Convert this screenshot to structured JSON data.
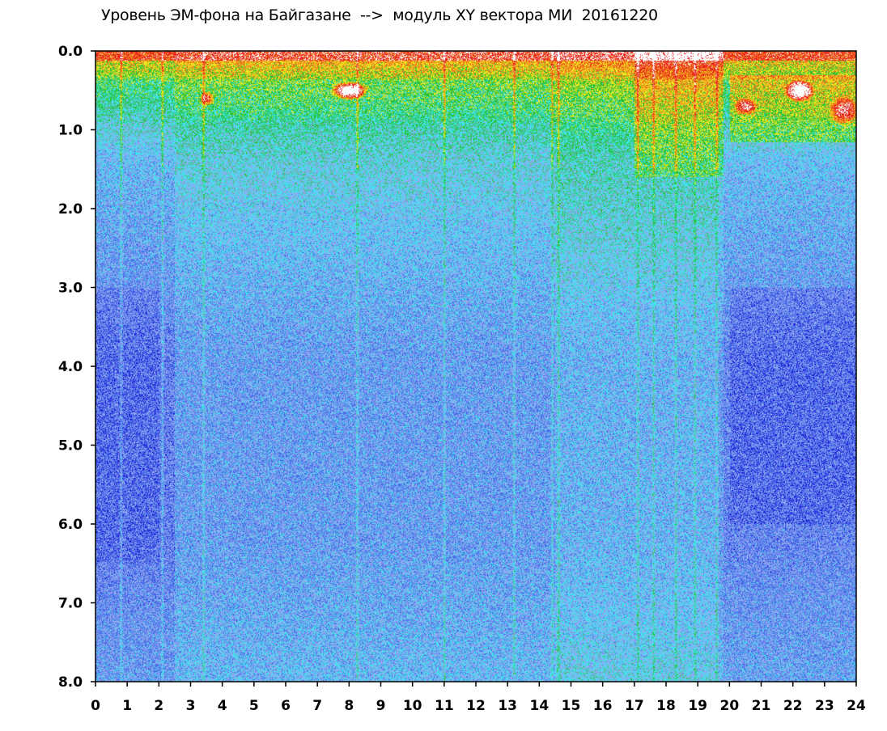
{
  "chart_data": {
    "type": "heatmap",
    "title": "Уровень ЭМ-фона на Байгазане  -->  модуль XY вектора МИ  20161220",
    "xlabel": "",
    "ylabel": "",
    "xlim": [
      0,
      24
    ],
    "ylim": [
      8.0,
      0.0
    ],
    "x_ticks": [
      "0",
      "1",
      "2",
      "3",
      "4",
      "5",
      "6",
      "7",
      "8",
      "9",
      "10",
      "11",
      "12",
      "13",
      "14",
      "15",
      "16",
      "17",
      "18",
      "19",
      "20",
      "21",
      "22",
      "23",
      "24"
    ],
    "y_ticks": [
      "0.0",
      "1.0",
      "2.0",
      "3.0",
      "4.0",
      "5.0",
      "6.0",
      "7.0",
      "8.0"
    ],
    "colorscale": [
      "#1a1ad6",
      "#4a6ee8",
      "#8fa8f0",
      "#3fe3ec",
      "#29c23a",
      "#f0e61e",
      "#f07a1e",
      "#e81e1e",
      "#ffffff"
    ],
    "description": "Spectrogram-like intensity map; high intensity (yellow/red/white) near 0.0–1.2, cyan/blue background below; vertical cyan streaks at ~0.8, 2.1, 8.2, 14.4, 17–19.6; bright patches at x≈8.0 y≈0.5, x≈3.5 y≈0.6, x≈20–24 y≈0.5–1.0"
  }
}
